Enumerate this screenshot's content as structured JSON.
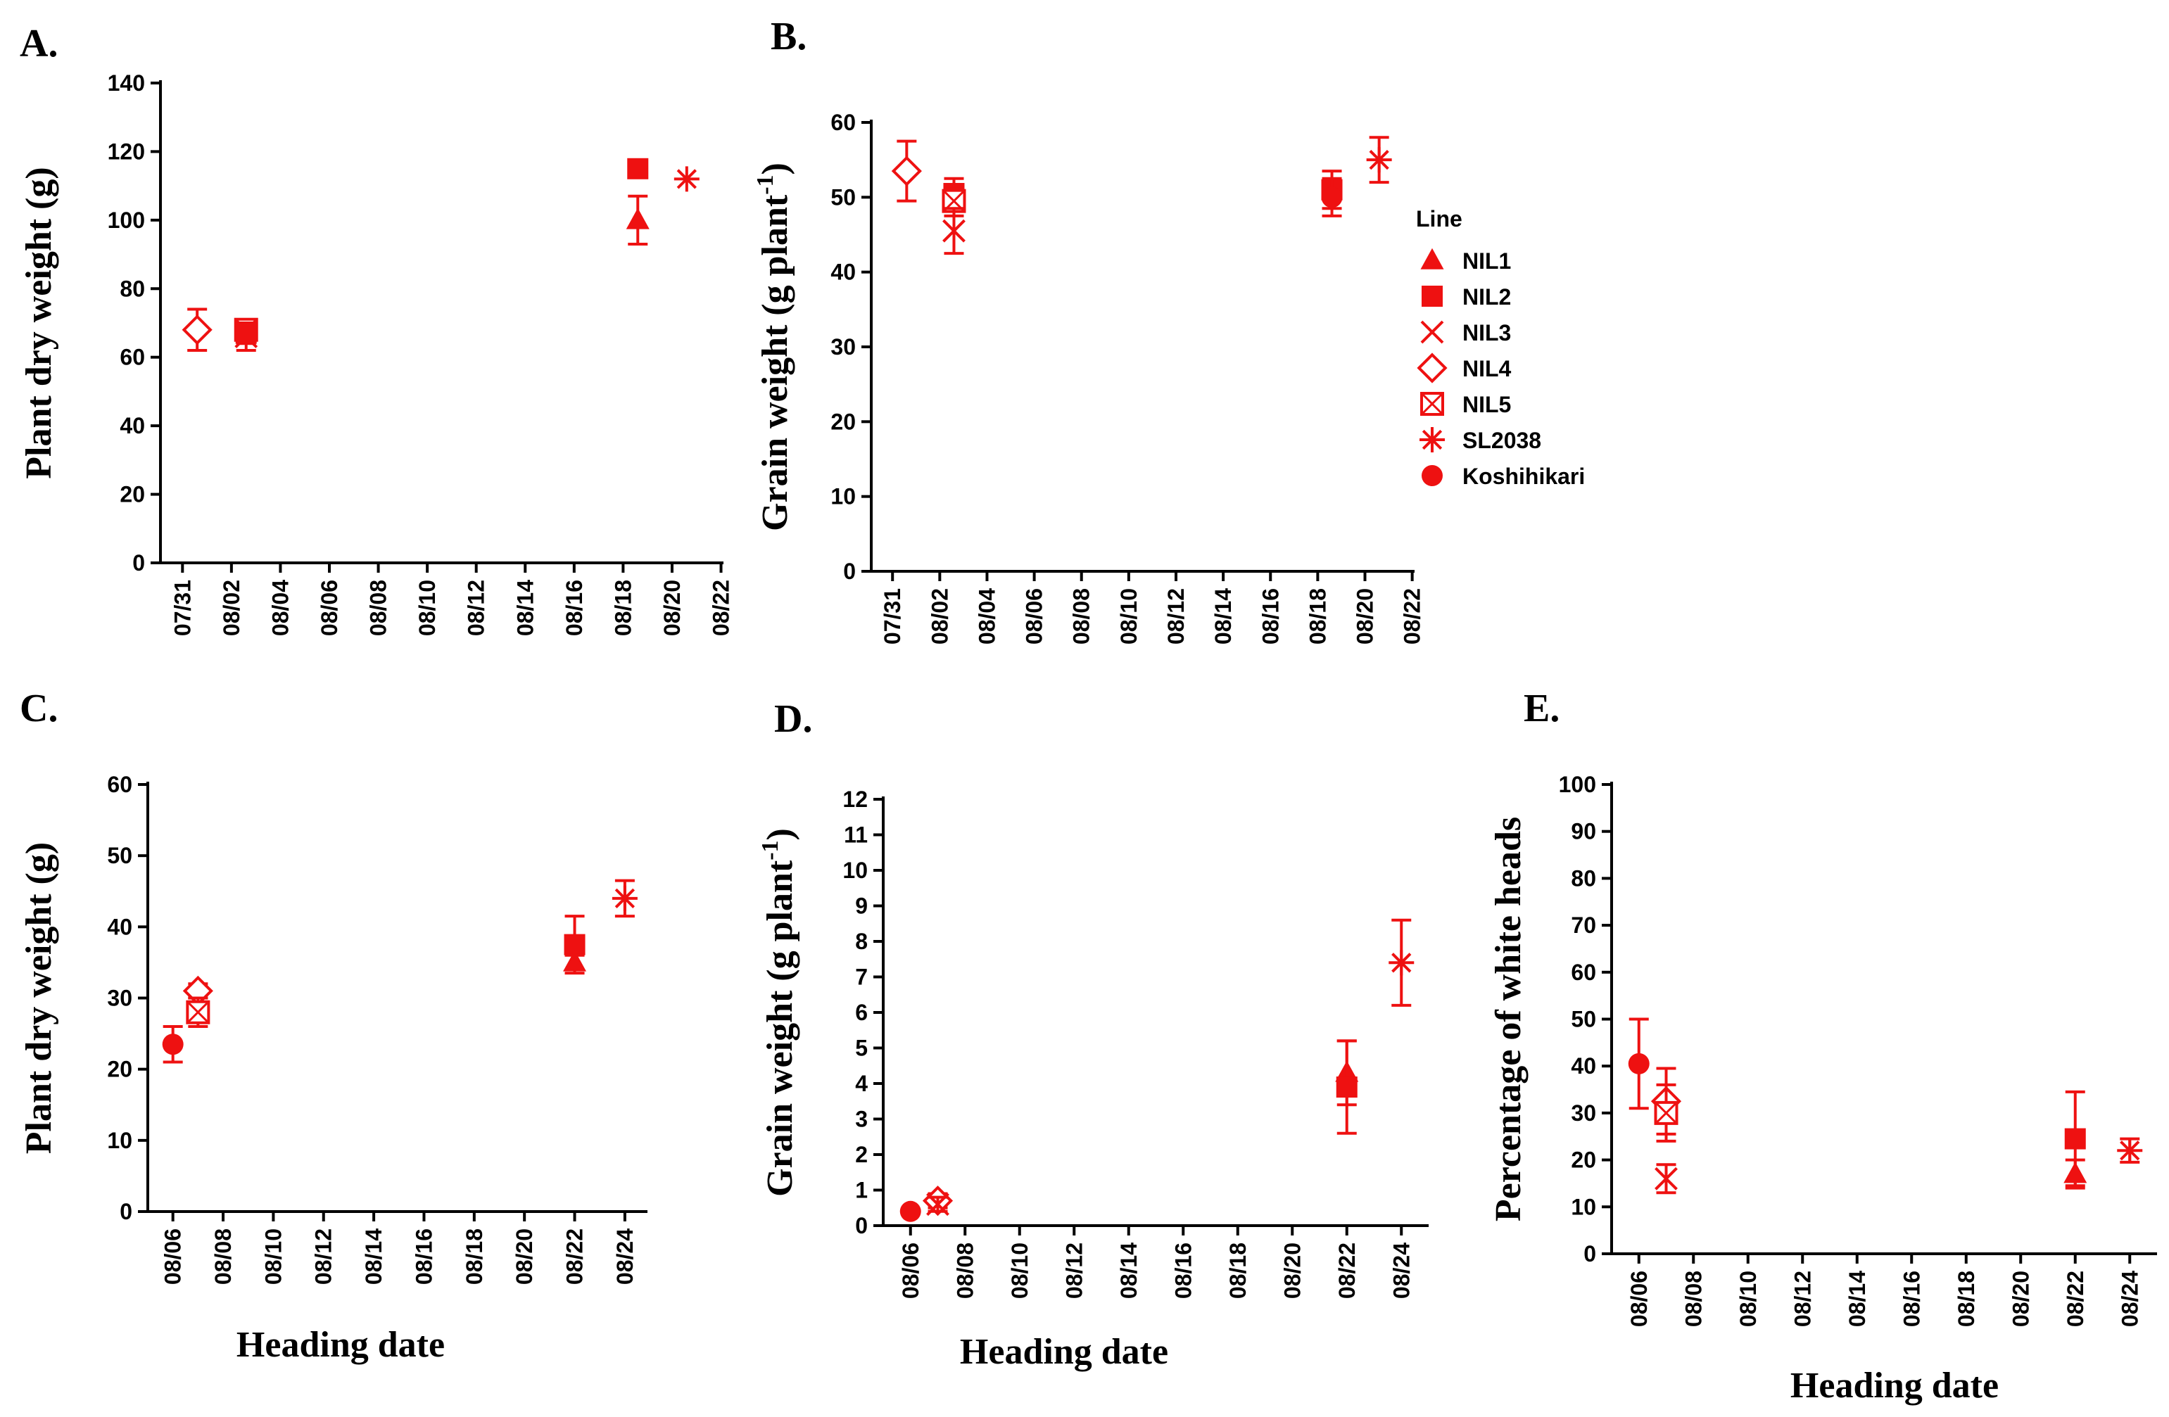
{
  "marker_color": "#ee1111",
  "legend": {
    "title": "Line",
    "entries": [
      {
        "name": "NIL1",
        "marker": "triangle-filled"
      },
      {
        "name": "NIL2",
        "marker": "square-filled"
      },
      {
        "name": "NIL3",
        "marker": "x-cross"
      },
      {
        "name": "NIL4",
        "marker": "diamond-open"
      },
      {
        "name": "NIL5",
        "marker": "square-crossed"
      },
      {
        "name": "SL2038",
        "marker": "asterisk"
      },
      {
        "name": "Koshihikari",
        "marker": "circle-filled"
      }
    ]
  },
  "chart_data": [
    {
      "panel": "A.",
      "type": "scatter",
      "ylabel": "Plant dry weight (g)",
      "xlabel": "",
      "ylim": [
        0,
        140
      ],
      "yticks": [
        0,
        20,
        40,
        60,
        80,
        100,
        120,
        140
      ],
      "xticks": [
        "07/31",
        "08/02",
        "08/04",
        "08/06",
        "08/08",
        "08/10",
        "08/12",
        "08/14",
        "08/16",
        "08/18",
        "08/20",
        "08/22"
      ],
      "points": [
        {
          "series": "NIL4",
          "x": 0.6,
          "y": 68,
          "err": 6
        },
        {
          "series": "NIL5",
          "x": 2.6,
          "y": 68,
          "err": 3
        },
        {
          "series": "NIL3",
          "x": 2.6,
          "y": 66,
          "err": 4
        },
        {
          "series": "NIL2",
          "x": 2.6,
          "y": 67,
          "err": 3
        },
        {
          "series": "NIL1",
          "x": 18.6,
          "y": 100,
          "err": 7
        },
        {
          "series": "NIL2",
          "x": 18.6,
          "y": 115,
          "err": 0
        },
        {
          "series": "SL2038",
          "x": 20.6,
          "y": 112,
          "err": 0
        }
      ]
    },
    {
      "panel": "B.",
      "type": "scatter",
      "ylabel": "Grain weight (g plant",
      "ylabel_sup": "-1",
      "ylabel_end": ")",
      "xlabel": "",
      "ylim": [
        0,
        60
      ],
      "yticks": [
        0,
        10,
        20,
        30,
        40,
        50,
        60
      ],
      "xticks": [
        "07/31",
        "08/02",
        "08/04",
        "08/06",
        "08/08",
        "08/10",
        "08/12",
        "08/14",
        "08/16",
        "08/18",
        "08/20",
        "08/22"
      ],
      "points": [
        {
          "series": "NIL4",
          "x": 0.6,
          "y": 53.5,
          "err": 4
        },
        {
          "series": "NIL2",
          "x": 2.6,
          "y": 50.5,
          "err": 2
        },
        {
          "series": "NIL5",
          "x": 2.6,
          "y": 49.5,
          "err": 2
        },
        {
          "series": "NIL3",
          "x": 2.6,
          "y": 45.5,
          "err": 3
        },
        {
          "series": "NIL2",
          "x": 18.6,
          "y": 51,
          "err": 2.5
        },
        {
          "series": "Koshihikari",
          "x": 18.6,
          "y": 50,
          "err": 2.5
        },
        {
          "series": "SL2038",
          "x": 20.6,
          "y": 55,
          "err": 3
        }
      ]
    },
    {
      "panel": "C.",
      "type": "scatter",
      "ylabel": "Plant dry weight (g)",
      "xlabel": "Heading date",
      "ylim": [
        0,
        60
      ],
      "yticks": [
        0,
        10,
        20,
        30,
        40,
        50,
        60
      ],
      "xticks": [
        "08/06",
        "08/08",
        "08/10",
        "08/12",
        "08/14",
        "08/16",
        "08/18",
        "08/20",
        "08/22",
        "08/24"
      ],
      "points": [
        {
          "series": "Koshihikari",
          "x": 6.0,
          "y": 23.5,
          "err": 2.5
        },
        {
          "series": "NIL4",
          "x": 7.0,
          "y": 31,
          "err": 1
        },
        {
          "series": "NIL5",
          "x": 7.0,
          "y": 28,
          "err": 2
        },
        {
          "series": "NIL2",
          "x": 22.0,
          "y": 37.5,
          "err": 4
        },
        {
          "series": "NIL1",
          "x": 22.0,
          "y": 35,
          "err": 1
        },
        {
          "series": "SL2038",
          "x": 24.0,
          "y": 44,
          "err": 2.5
        }
      ]
    },
    {
      "panel": "D.",
      "type": "scatter",
      "ylabel": "Grain weight (g plant",
      "ylabel_sup": "-1",
      "ylabel_end": ")",
      "xlabel": "Heading date",
      "ylim": [
        0,
        12
      ],
      "yticks": [
        0,
        1,
        2,
        3,
        4,
        5,
        6,
        7,
        8,
        9,
        10,
        11,
        12
      ],
      "xticks": [
        "08/06",
        "08/08",
        "08/10",
        "08/12",
        "08/14",
        "08/16",
        "08/18",
        "08/20",
        "08/22",
        "08/24"
      ],
      "points": [
        {
          "series": "Koshihikari",
          "x": 6.0,
          "y": 0.4,
          "err": 0
        },
        {
          "series": "NIL4",
          "x": 7.0,
          "y": 0.7,
          "err": 0.2
        },
        {
          "series": "NIL3",
          "x": 7.0,
          "y": 0.6,
          "err": 0.2
        },
        {
          "series": "NIL1",
          "x": 22.0,
          "y": 4.3,
          "err": 0.9
        },
        {
          "series": "NIL2",
          "x": 22.0,
          "y": 3.9,
          "err": 1.3
        },
        {
          "series": "SL2038",
          "x": 24.0,
          "y": 7.4,
          "err": 1.2
        }
      ]
    },
    {
      "panel": "E.",
      "type": "scatter",
      "ylabel": "Percentage of white heads",
      "xlabel": "Heading date",
      "ylim": [
        0,
        100
      ],
      "yticks": [
        0,
        10,
        20,
        30,
        40,
        50,
        60,
        70,
        80,
        90,
        100
      ],
      "xticks": [
        "08/06",
        "08/08",
        "08/10",
        "08/12",
        "08/14",
        "08/16",
        "08/18",
        "08/20",
        "08/22",
        "08/24"
      ],
      "points": [
        {
          "series": "Koshihikari",
          "x": 6.0,
          "y": 40.5,
          "err": 9.5
        },
        {
          "series": "NIL4",
          "x": 7.0,
          "y": 32.5,
          "err": 7
        },
        {
          "series": "NIL5",
          "x": 7.0,
          "y": 30,
          "err": 6
        },
        {
          "series": "NIL3",
          "x": 7.0,
          "y": 16,
          "err": 3
        },
        {
          "series": "NIL2",
          "x": 22.0,
          "y": 24.5,
          "err": 10
        },
        {
          "series": "NIL1",
          "x": 22.0,
          "y": 17,
          "err": 3
        },
        {
          "series": "SL2038",
          "x": 24.0,
          "y": 22,
          "err": 2.5
        }
      ]
    }
  ]
}
